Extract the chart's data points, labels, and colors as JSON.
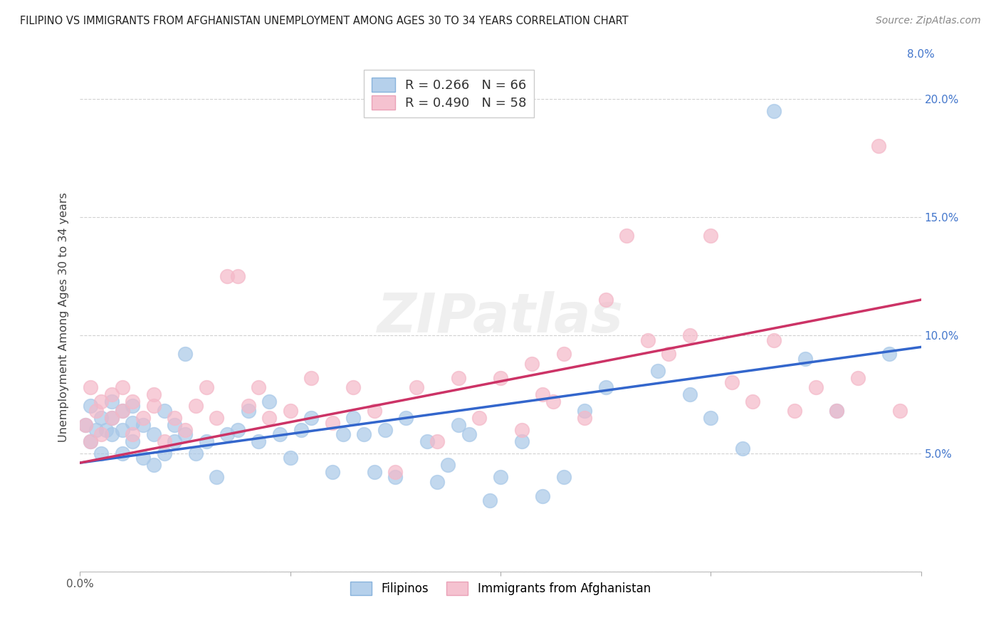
{
  "title": "FILIPINO VS IMMIGRANTS FROM AFGHANISTAN UNEMPLOYMENT AMONG AGES 30 TO 34 YEARS CORRELATION CHART",
  "source": "Source: ZipAtlas.com",
  "ylabel": "Unemployment Among Ages 30 to 34 years",
  "r_blue": 0.266,
  "n_blue": 66,
  "r_pink": 0.49,
  "n_pink": 58,
  "blue_color": "#a8c8e8",
  "pink_color": "#f4b8c8",
  "blue_line_color": "#3366cc",
  "pink_line_color": "#cc3366",
  "watermark": "ZIPatlas",
  "xlim": [
    0.0,
    0.08
  ],
  "ylim": [
    0.0,
    0.215
  ],
  "blue_x": [
    0.0005,
    0.001,
    0.001,
    0.0015,
    0.002,
    0.002,
    0.0025,
    0.003,
    0.003,
    0.003,
    0.004,
    0.004,
    0.004,
    0.005,
    0.005,
    0.005,
    0.006,
    0.006,
    0.007,
    0.007,
    0.008,
    0.008,
    0.009,
    0.009,
    0.01,
    0.01,
    0.011,
    0.012,
    0.013,
    0.014,
    0.015,
    0.016,
    0.017,
    0.018,
    0.019,
    0.02,
    0.021,
    0.022,
    0.024,
    0.025,
    0.026,
    0.027,
    0.028,
    0.029,
    0.03,
    0.031,
    0.033,
    0.034,
    0.035,
    0.036,
    0.037,
    0.039,
    0.04,
    0.042,
    0.044,
    0.046,
    0.048,
    0.05,
    0.055,
    0.058,
    0.06,
    0.063,
    0.066,
    0.069,
    0.072,
    0.077
  ],
  "blue_y": [
    0.062,
    0.055,
    0.07,
    0.06,
    0.05,
    0.065,
    0.06,
    0.058,
    0.065,
    0.072,
    0.05,
    0.06,
    0.068,
    0.055,
    0.063,
    0.07,
    0.048,
    0.062,
    0.045,
    0.058,
    0.05,
    0.068,
    0.055,
    0.062,
    0.092,
    0.058,
    0.05,
    0.055,
    0.04,
    0.058,
    0.06,
    0.068,
    0.055,
    0.072,
    0.058,
    0.048,
    0.06,
    0.065,
    0.042,
    0.058,
    0.065,
    0.058,
    0.042,
    0.06,
    0.04,
    0.065,
    0.055,
    0.038,
    0.045,
    0.062,
    0.058,
    0.03,
    0.04,
    0.055,
    0.032,
    0.04,
    0.068,
    0.078,
    0.085,
    0.075,
    0.065,
    0.052,
    0.195,
    0.09,
    0.068,
    0.092
  ],
  "pink_x": [
    0.0005,
    0.001,
    0.001,
    0.0015,
    0.002,
    0.002,
    0.003,
    0.003,
    0.004,
    0.004,
    0.005,
    0.005,
    0.006,
    0.007,
    0.007,
    0.008,
    0.009,
    0.01,
    0.011,
    0.012,
    0.013,
    0.014,
    0.015,
    0.016,
    0.017,
    0.018,
    0.02,
    0.022,
    0.024,
    0.026,
    0.028,
    0.03,
    0.032,
    0.034,
    0.036,
    0.038,
    0.04,
    0.042,
    0.043,
    0.044,
    0.045,
    0.046,
    0.048,
    0.05,
    0.052,
    0.054,
    0.056,
    0.058,
    0.06,
    0.062,
    0.064,
    0.066,
    0.068,
    0.07,
    0.072,
    0.074,
    0.076,
    0.078
  ],
  "pink_y": [
    0.062,
    0.078,
    0.055,
    0.068,
    0.072,
    0.058,
    0.075,
    0.065,
    0.068,
    0.078,
    0.058,
    0.072,
    0.065,
    0.07,
    0.075,
    0.055,
    0.065,
    0.06,
    0.07,
    0.078,
    0.065,
    0.125,
    0.125,
    0.07,
    0.078,
    0.065,
    0.068,
    0.082,
    0.063,
    0.078,
    0.068,
    0.042,
    0.078,
    0.055,
    0.082,
    0.065,
    0.082,
    0.06,
    0.088,
    0.075,
    0.072,
    0.092,
    0.065,
    0.115,
    0.142,
    0.098,
    0.092,
    0.1,
    0.142,
    0.08,
    0.072,
    0.098,
    0.068,
    0.078,
    0.068,
    0.082,
    0.18,
    0.068
  ]
}
